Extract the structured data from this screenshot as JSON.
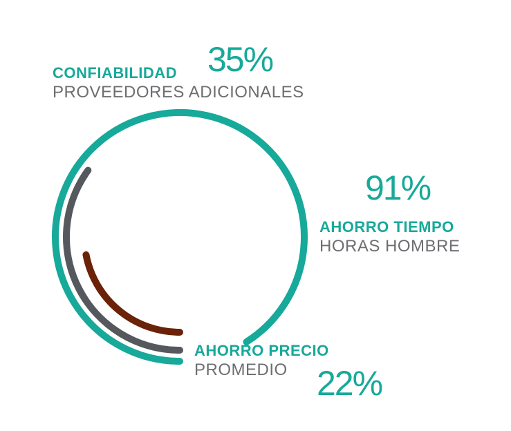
{
  "colors": {
    "teal": "#17a99a",
    "gray": "#55585d",
    "brown": "#6a2208",
    "subtext": "#6d6e71"
  },
  "chart_data": {
    "type": "radial-bar",
    "title": "",
    "series": [
      {
        "name": "AHORRO TIEMPO",
        "subtitle": "HORAS HOMBRE",
        "value": 91,
        "display": "91%",
        "color": "#17a99a"
      },
      {
        "name": "CONFIABILIDAD",
        "subtitle": "PROVEEDORES ADICIONALES",
        "value": 35,
        "display": "35%",
        "color": "#55585d"
      },
      {
        "name": "AHORRO PRECIO",
        "subtitle": "PROMEDIO",
        "value": 22,
        "display": "22%",
        "color": "#6a2208"
      }
    ]
  }
}
